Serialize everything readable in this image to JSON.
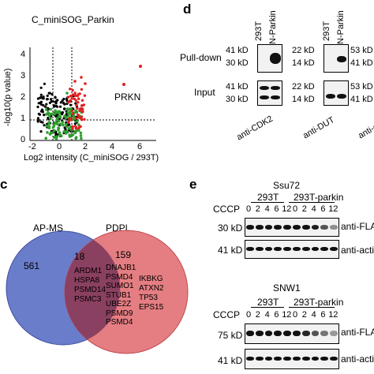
{
  "panel_top_left": {
    "title": "C_miniSOG_Parkin",
    "ylabel": "-log10(p value)",
    "xlabel": "Log2 intensity (C_miniSOG / 293T)",
    "x_ticks": [
      "-2",
      "0",
      "2",
      "4",
      "6"
    ],
    "y_ticks": [
      "0",
      "1",
      "2",
      "3",
      "4"
    ],
    "highlight_label": "PRKN",
    "colors": {
      "black": "#000000",
      "green": "#2e9e2e",
      "red": "#e02020"
    }
  },
  "panel_d": {
    "letter": "d",
    "lanes_left": [
      "293T",
      "N-Parkin"
    ],
    "lanes_right": [
      "293T",
      "N-Parkin"
    ],
    "row_labels": [
      "Pull-down",
      "Input"
    ],
    "left_markers": [
      "41 kD",
      "30 kD"
    ],
    "mid_markers": [
      "22 kD",
      "14 kD"
    ],
    "right_markers": [
      "53 kD",
      "41 kD"
    ],
    "antibodies": [
      "anti-CDK2",
      "anti-DUT",
      "anti-c"
    ]
  },
  "panel_c": {
    "letter": "c",
    "set_a": "AP-MS",
    "set_b": "PDPL",
    "only_a": "561",
    "overlap": "18",
    "only_b": "159",
    "overlap_genes": [
      "ARDM1",
      "HSPA8",
      "PSMD14",
      "PSMC3"
    ],
    "overlap_genes_2": [
      "DNAJB1",
      "PSMD4",
      "SUMO1",
      "STUB1",
      "UBE2Z",
      "PSMD9",
      "PSMD4"
    ],
    "b_genes": [
      "IKBKG",
      "ATXN2",
      "TP53",
      "EPS15"
    ],
    "colors": {
      "a": "#5a6fc4",
      "b": "#e0676c",
      "overlap": "#8a4060"
    }
  },
  "panel_e": {
    "letter": "e",
    "blocks": [
      {
        "protein": "Ssu72",
        "group_a": "293T",
        "group_b": "293T-parkin",
        "treatment": "CCCP",
        "timepoints": [
          "0",
          "2",
          "4",
          "6",
          "12",
          "0",
          "2",
          "4",
          "6",
          "12"
        ],
        "markers": [
          "30 kD",
          "41 kD"
        ],
        "antibodies": [
          "anti-FLA",
          "anti-actin"
        ]
      },
      {
        "protein": "SNW1",
        "group_a": "293T",
        "group_b": "293T-parkin",
        "treatment": "CCCP",
        "timepoints": [
          "0",
          "2",
          "4",
          "6",
          "12",
          "0",
          "2",
          "4",
          "6",
          "12"
        ],
        "markers": [
          "75 kD",
          "41 kD"
        ],
        "antibodies": [
          "anti-FLA",
          "anti-actin"
        ]
      }
    ]
  }
}
